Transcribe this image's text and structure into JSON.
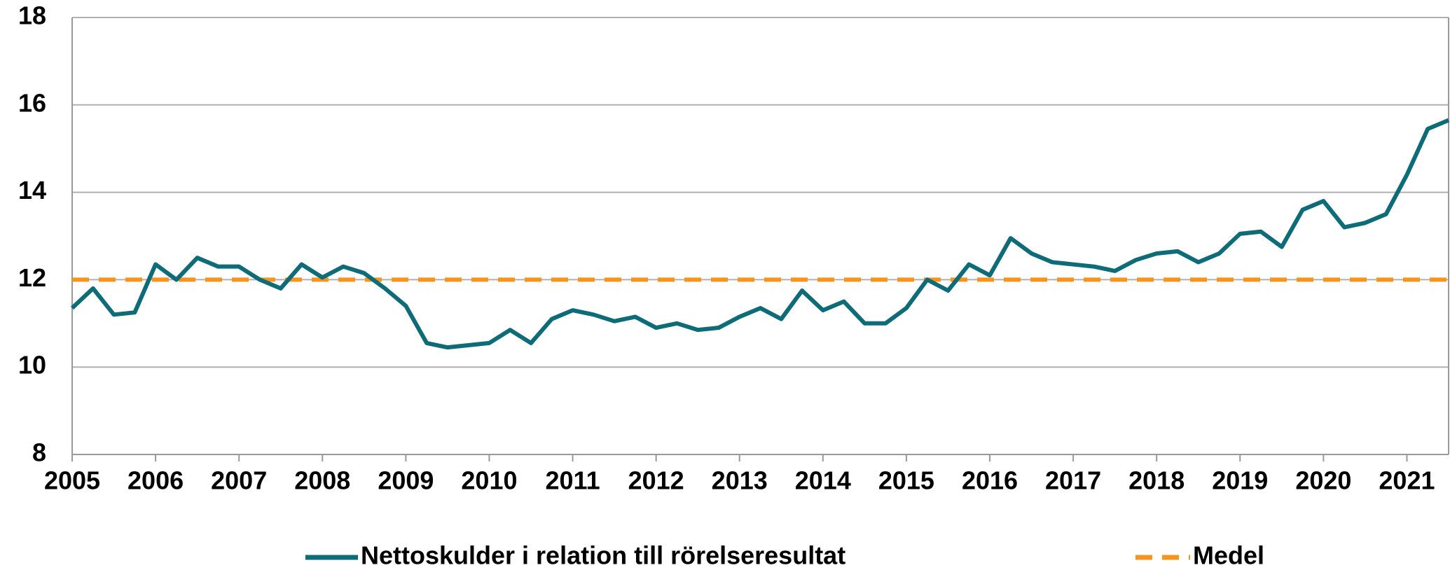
{
  "chart_data": {
    "type": "line",
    "x": [
      2005,
      2005.25,
      2005.5,
      2005.75,
      2006,
      2006.25,
      2006.5,
      2006.75,
      2007,
      2007.25,
      2007.5,
      2007.75,
      2008,
      2008.25,
      2008.5,
      2008.75,
      2009,
      2009.25,
      2009.5,
      2009.75,
      2010,
      2010.25,
      2010.5,
      2010.75,
      2011,
      2011.25,
      2011.5,
      2011.75,
      2012,
      2012.25,
      2012.5,
      2012.75,
      2013,
      2013.25,
      2013.5,
      2013.75,
      2014,
      2014.25,
      2014.5,
      2014.75,
      2015,
      2015.25,
      2015.5,
      2015.75,
      2016,
      2016.25,
      2016.5,
      2016.75,
      2017,
      2017.25,
      2017.5,
      2017.75,
      2018,
      2018.25,
      2018.5,
      2018.75,
      2019,
      2019.25,
      2019.5,
      2019.75,
      2020,
      2020.25,
      2020.5,
      2020.75,
      2021,
      2021.25,
      2021.5
    ],
    "series": [
      {
        "name": "Nettoskulder i relation till rörelseresultat",
        "color": "#0e6b78",
        "dashed": false,
        "values": [
          11.35,
          11.8,
          11.2,
          11.25,
          12.35,
          12.0,
          12.5,
          12.3,
          12.3,
          12.0,
          11.8,
          12.35,
          12.05,
          12.3,
          12.15,
          11.8,
          11.4,
          10.55,
          10.45,
          10.5,
          10.55,
          10.85,
          10.55,
          11.1,
          11.3,
          11.2,
          11.05,
          11.15,
          10.9,
          11.0,
          10.85,
          10.9,
          11.15,
          11.35,
          11.1,
          11.75,
          11.3,
          11.5,
          11.0,
          11.0,
          11.35,
          12.0,
          11.75,
          12.35,
          12.1,
          12.95,
          12.6,
          12.4,
          12.35,
          12.3,
          12.2,
          12.45,
          12.6,
          12.65,
          12.4,
          12.6,
          13.05,
          13.1,
          12.75,
          13.6,
          13.8,
          13.2,
          13.3,
          13.5,
          14.4,
          15.45,
          15.65
        ]
      },
      {
        "name": "Medel",
        "color": "#f7941d",
        "dashed": true,
        "values": [
          12,
          12,
          12,
          12,
          12,
          12,
          12,
          12,
          12,
          12,
          12,
          12,
          12,
          12,
          12,
          12,
          12,
          12,
          12,
          12,
          12,
          12,
          12,
          12,
          12,
          12,
          12,
          12,
          12,
          12,
          12,
          12,
          12,
          12,
          12,
          12,
          12,
          12,
          12,
          12,
          12,
          12,
          12,
          12,
          12,
          12,
          12,
          12,
          12,
          12,
          12,
          12,
          12,
          12,
          12,
          12,
          12,
          12,
          12,
          12,
          12,
          12,
          12,
          12,
          12,
          12,
          12
        ]
      }
    ],
    "xlim": [
      2005,
      2021.5
    ],
    "xticks": [
      2005,
      2006,
      2007,
      2008,
      2009,
      2010,
      2011,
      2012,
      2013,
      2014,
      2015,
      2016,
      2017,
      2018,
      2019,
      2020,
      2021
    ],
    "ylim": [
      8,
      18
    ],
    "yticks": [
      8,
      10,
      12,
      14,
      16,
      18
    ],
    "grid": true,
    "legend": "bottom"
  }
}
